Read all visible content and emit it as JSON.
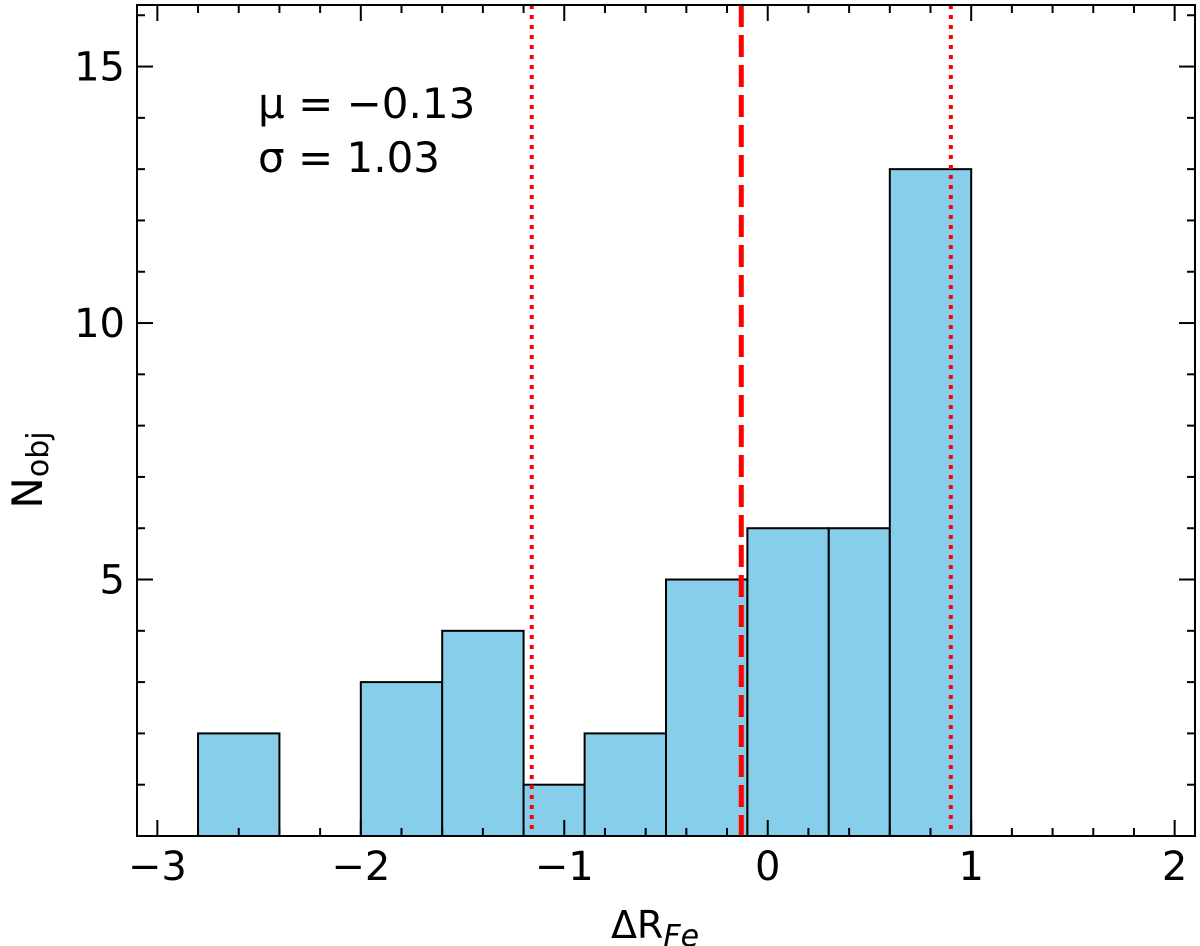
{
  "chart_data": {
    "type": "bar",
    "bins": [
      {
        "left": -2.8,
        "right": -2.4,
        "count": 2
      },
      {
        "left": -2.4,
        "right": -2.0,
        "count": 0
      },
      {
        "left": -2.0,
        "right": -1.6,
        "count": 3
      },
      {
        "left": -1.6,
        "right": -1.2,
        "count": 4
      },
      {
        "left": -1.2,
        "right": -0.9,
        "count": 1
      },
      {
        "left": -0.9,
        "right": -0.5,
        "count": 2
      },
      {
        "left": -0.5,
        "right": -0.1,
        "count": 5
      },
      {
        "left": -0.1,
        "right": 0.3,
        "count": 6
      },
      {
        "left": 0.3,
        "right": 0.6,
        "count": 6
      },
      {
        "left": 0.6,
        "right": 1.0,
        "count": 13
      }
    ],
    "xlabel": {
      "main": "ΔR",
      "sub": "Fe"
    },
    "ylabel": {
      "main": "N",
      "sub": "obj"
    },
    "xlim": [
      -3.1,
      2.1
    ],
    "ylim": [
      0.0,
      16.2
    ],
    "x_major_ticks": [
      -3,
      -2,
      -1,
      0,
      1,
      2
    ],
    "x_tick_labels": [
      "−3",
      "−2",
      "−1",
      "0",
      "1",
      "2"
    ],
    "x_minor_step": 0.2,
    "y_major_ticks": [
      5,
      10,
      15
    ],
    "y_tick_labels": [
      "5",
      "10",
      "15"
    ],
    "y_minor_step": 1,
    "mean_line": -0.13,
    "sigma_lines": [
      -1.16,
      0.9
    ],
    "annotations": {
      "mu": "μ = −0.13",
      "sigma": "σ = 1.03"
    },
    "colors": {
      "bar_fill": "#87ceeb",
      "bar_edge": "#000000",
      "line": "#ff0000"
    }
  }
}
